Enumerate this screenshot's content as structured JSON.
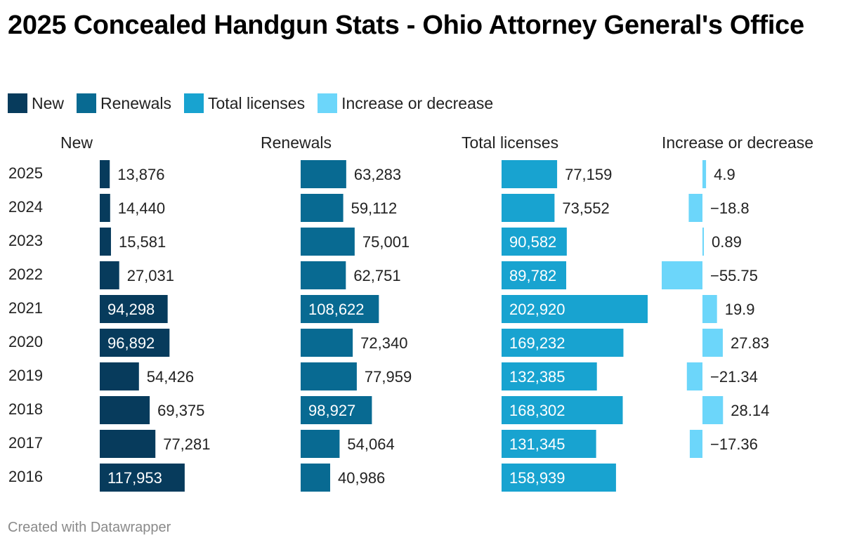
{
  "title": "2025 Concealed Handgun Stats - Ohio Attorney General's Office",
  "footer": "Created with Datawrapper",
  "legend": [
    {
      "label": "New",
      "color": "#073B5C"
    },
    {
      "label": "Renewals",
      "color": "#086A92"
    },
    {
      "label": "Total licenses",
      "color": "#18A3D0"
    },
    {
      "label": "Increase or decrease",
      "color": "#6CD6FA"
    }
  ],
  "chart_data": {
    "type": "bar",
    "orientation": "horizontal",
    "categories": [
      "2025",
      "2024",
      "2023",
      "2022",
      "2021",
      "2020",
      "2019",
      "2018",
      "2017",
      "2016"
    ],
    "series": [
      {
        "name": "New",
        "color": "#073B5C",
        "values": [
          13876,
          14440,
          15581,
          27031,
          94298,
          96892,
          54426,
          69375,
          77281,
          117953
        ],
        "labels": [
          "13,876",
          "14,440",
          "15,581",
          "27,031",
          "94,298",
          "96,892",
          "54,426",
          "69,375",
          "77,281",
          "117,953"
        ]
      },
      {
        "name": "Renewals",
        "color": "#086A92",
        "values": [
          63283,
          59112,
          75001,
          62751,
          108622,
          72340,
          77959,
          98927,
          54064,
          40986
        ],
        "labels": [
          "63,283",
          "59,112",
          "75,001",
          "62,751",
          "108,622",
          "72,340",
          "77,959",
          "98,927",
          "54,064",
          "40,986"
        ]
      },
      {
        "name": "Total licenses",
        "color": "#18A3D0",
        "values": [
          77159,
          73552,
          90582,
          89782,
          202920,
          169232,
          132385,
          168302,
          131345,
          158939
        ],
        "labels": [
          "77,159",
          "73,552",
          "90,582",
          "89,782",
          "202,920",
          "169,232",
          "132,385",
          "168,302",
          "131,345",
          "158,939"
        ]
      },
      {
        "name": "Increase or decrease",
        "color": "#6CD6FA",
        "values": [
          4.9,
          -18.8,
          0.89,
          -55.75,
          19.9,
          27.83,
          -21.34,
          28.14,
          -17.36,
          null
        ],
        "labels": [
          "4.9",
          "−18.8",
          "0.89",
          "−55.75",
          "19.9",
          "27.83",
          "−21.34",
          "28.14",
          "−17.36",
          ""
        ]
      }
    ],
    "grid": false,
    "legend_position": "top-left"
  }
}
